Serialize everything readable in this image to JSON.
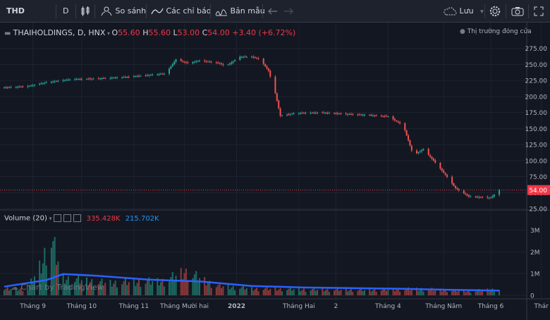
{
  "toolbar": {
    "symbol": "THD",
    "interval": "D",
    "compare_label": "So sánh",
    "indicators_label": "Các chỉ báo",
    "templates_label": "Bản mẫu",
    "save_label": "Lưu"
  },
  "legend": {
    "title": "THAIHOLDINGS, D, HNX",
    "o_key": "O",
    "o_val": "55.60",
    "h_key": "H",
    "h_val": "55.60",
    "l_key": "L",
    "l_val": "53.00",
    "c_key": "C",
    "c_val": "54.00",
    "change": "+3.40 (+6.72%)",
    "market_status": "Thị trường đóng cửa"
  },
  "volume_legend": {
    "label": "Volume (20)",
    "volume": "335.428K",
    "ma": "215.702K"
  },
  "watermark": "Chart by TradingView",
  "colors": {
    "up": "#26a69a",
    "down": "#ef5350",
    "background": "#131722",
    "ma_line": "#2962ff",
    "last_price": "#f23645"
  },
  "chart_data": {
    "type": "candlestick",
    "title": "THAIHOLDINGS, D, HNX",
    "price_axis": {
      "range": [
        25,
        300
      ],
      "ticks": [
        "275.00",
        "250.00",
        "225.00",
        "200.00",
        "175.00",
        "150.00",
        "125.00",
        "100.00",
        "75.00",
        "50.00",
        "25.00"
      ]
    },
    "last_price_label": "54.00",
    "volume_axis": {
      "range": [
        0,
        3600000
      ],
      "ticks": [
        "3M",
        "2M",
        "1M",
        "0"
      ]
    },
    "x_ticks": [
      "Tháng 9",
      "Tháng 10",
      "Tháng 11",
      "Tháng Mười hai",
      "2022",
      "Tháng Hai",
      "2",
      "Tháng 4",
      "Tháng Năm",
      "Tháng 6",
      "Thár"
    ],
    "price_path": [
      [
        "2021-08-16",
        214
      ],
      [
        "2021-08-30",
        216
      ],
      [
        "2021-09-10",
        222
      ],
      [
        "2021-09-25",
        227
      ],
      [
        "2021-10-10",
        228
      ],
      [
        "2021-10-25",
        230
      ],
      [
        "2021-11-08",
        233
      ],
      [
        "2021-11-20",
        236
      ],
      [
        "2021-11-26",
        258
      ],
      [
        "2021-12-03",
        252
      ],
      [
        "2021-12-10",
        256
      ],
      [
        "2021-12-20",
        253
      ],
      [
        "2021-12-26",
        248
      ],
      [
        "2022-01-03",
        262
      ],
      [
        "2022-01-10",
        262
      ],
      [
        "2022-01-15",
        258
      ],
      [
        "2022-01-20",
        240
      ],
      [
        "2022-01-24",
        205
      ],
      [
        "2022-01-27",
        170
      ],
      [
        "2022-02-05",
        174
      ],
      [
        "2022-02-20",
        175
      ],
      [
        "2022-03-05",
        173
      ],
      [
        "2022-03-20",
        171
      ],
      [
        "2022-04-01",
        169
      ],
      [
        "2022-04-10",
        155
      ],
      [
        "2022-04-16",
        108
      ],
      [
        "2022-04-22",
        118
      ],
      [
        "2022-04-28",
        100
      ],
      [
        "2022-05-05",
        78
      ],
      [
        "2022-05-11",
        57
      ],
      [
        "2022-05-19",
        44
      ],
      [
        "2022-06-01",
        42
      ],
      [
        "2022-06-06",
        54
      ]
    ],
    "volume_path": [
      [
        "2021-08-16",
        320000
      ],
      [
        "2021-08-30",
        350000
      ],
      [
        "2021-09-08",
        1800000
      ],
      [
        "2021-09-12",
        3200000
      ],
      [
        "2021-09-20",
        900000
      ],
      [
        "2021-10-15",
        650000
      ],
      [
        "2021-11-20",
        750000
      ],
      [
        "2021-12-01",
        1250000
      ],
      [
        "2021-12-20",
        500000
      ],
      [
        "2022-01-10",
        350000
      ],
      [
        "2022-02-15",
        300000
      ],
      [
        "2022-03-20",
        280000
      ],
      [
        "2022-04-20",
        330000
      ],
      [
        "2022-05-20",
        220000
      ],
      [
        "2022-06-06",
        335428
      ]
    ],
    "volume_ma20_path": [
      [
        "2021-08-16",
        400000
      ],
      [
        "2021-09-10",
        700000
      ],
      [
        "2021-09-20",
        980000
      ],
      [
        "2021-10-10",
        900000
      ],
      [
        "2021-11-10",
        720000
      ],
      [
        "2021-12-10",
        640000
      ],
      [
        "2022-01-10",
        430000
      ],
      [
        "2022-02-10",
        360000
      ],
      [
        "2022-03-10",
        330000
      ],
      [
        "2022-04-10",
        300000
      ],
      [
        "2022-05-10",
        250000
      ],
      [
        "2022-06-06",
        215702
      ]
    ]
  }
}
